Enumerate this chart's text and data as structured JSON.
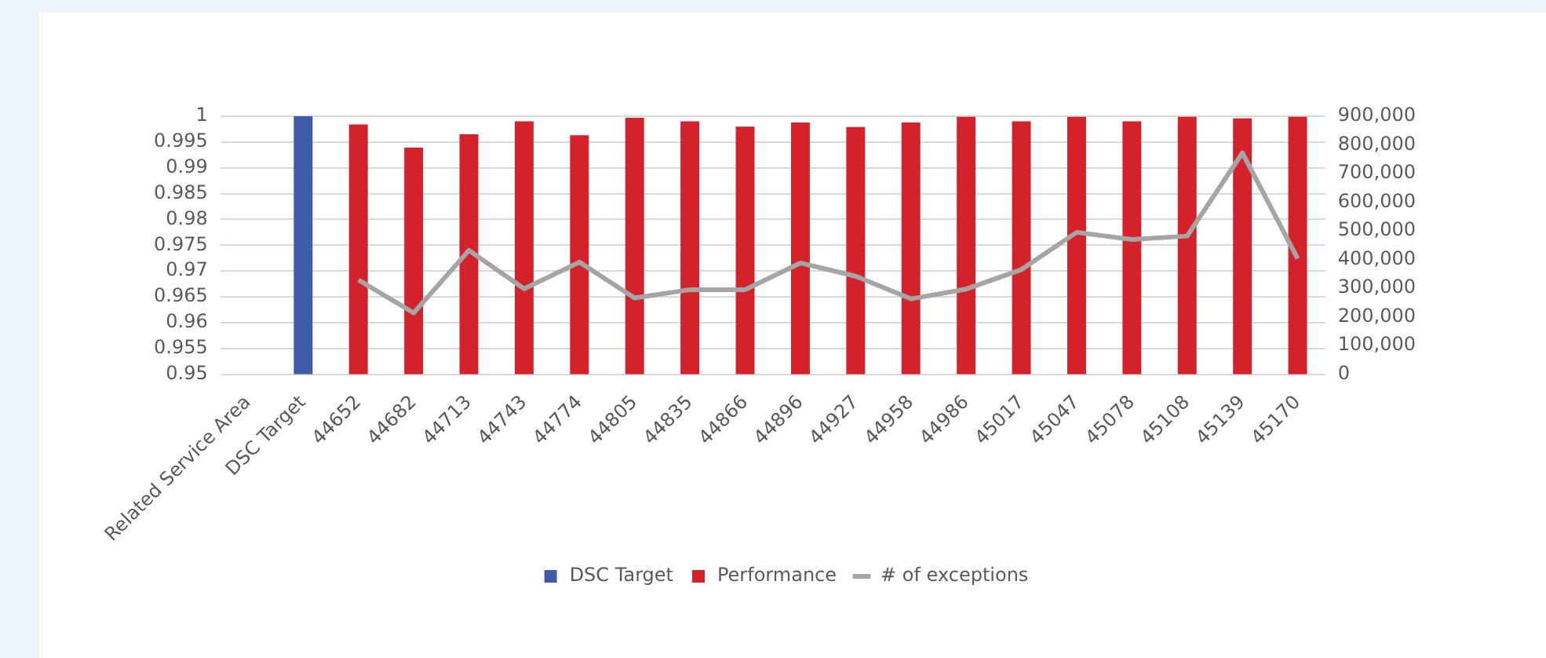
{
  "chart_data": {
    "type": "bar",
    "categories": [
      "Related Service Area",
      "DSC Target",
      "44652",
      "44682",
      "44713",
      "44743",
      "44774",
      "44805",
      "44835",
      "44866",
      "44896",
      "44927",
      "44958",
      "44986",
      "45017",
      "45047",
      "45078",
      "45108",
      "45139",
      "45170"
    ],
    "series": [
      {
        "name": "DSC Target",
        "color": "#3f5aa6",
        "values": [
          null,
          1,
          null,
          null,
          null,
          null,
          null,
          null,
          null,
          null,
          null,
          null,
          null,
          null,
          null,
          null,
          null,
          null,
          null,
          null
        ]
      },
      {
        "name": "Performance",
        "color": "#d4222a",
        "values": [
          null,
          null,
          0.9984,
          0.9939,
          0.9965,
          0.999,
          0.9963,
          0.9997,
          0.999,
          0.998,
          0.9988,
          0.9979,
          0.9988,
          0.9999,
          0.999,
          0.9999,
          0.999,
          0.9999,
          0.9996,
          0.9999
        ]
      },
      {
        "name": "# of exceptions",
        "type": "line",
        "axis": "y2",
        "color": "#a5a5a5",
        "values": [
          null,
          null,
          329000,
          214000,
          432000,
          298000,
          391000,
          266000,
          295000,
          295000,
          388000,
          342000,
          263000,
          297000,
          365000,
          495000,
          470000,
          482000,
          772000,
          403000
        ]
      }
    ],
    "ylim": [
      0.95,
      1
    ],
    "yticks": [
      0.95,
      0.955,
      0.96,
      0.965,
      0.97,
      0.975,
      0.98,
      0.985,
      0.99,
      0.995,
      1
    ],
    "y2lim": [
      0,
      900000
    ],
    "y2ticks": [
      0,
      {
        "value": 100000,
        "label": "100,000"
      },
      {
        "value": 200000,
        "label": "200,000"
      },
      {
        "value": 300000,
        "label": "300,000"
      },
      {
        "value": 400000,
        "label": "400,000"
      },
      {
        "value": 500000,
        "label": "500,000"
      },
      {
        "value": 600000,
        "label": "600,000"
      },
      {
        "value": 700000,
        "label": "700,000"
      },
      {
        "value": 800000,
        "label": "800,000"
      },
      {
        "value": 900000,
        "label": "900,000"
      }
    ],
    "grid": "y",
    "legend": "bottom",
    "marker": "none",
    "line_style": "solid"
  }
}
